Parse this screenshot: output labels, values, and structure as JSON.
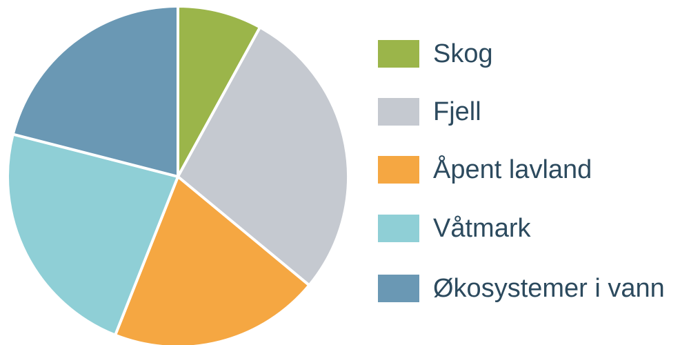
{
  "chart_data": {
    "type": "pie",
    "categories": [
      "Skog",
      "Fjell",
      "Åpent lavland",
      "Våtmark",
      "Økosystemer i vann"
    ],
    "values": [
      8,
      28,
      20,
      23,
      21
    ],
    "colors": [
      "#9bb54a",
      "#c5c9d0",
      "#f5a742",
      "#8fcfd6",
      "#6a98b4"
    ],
    "legend": "right"
  }
}
